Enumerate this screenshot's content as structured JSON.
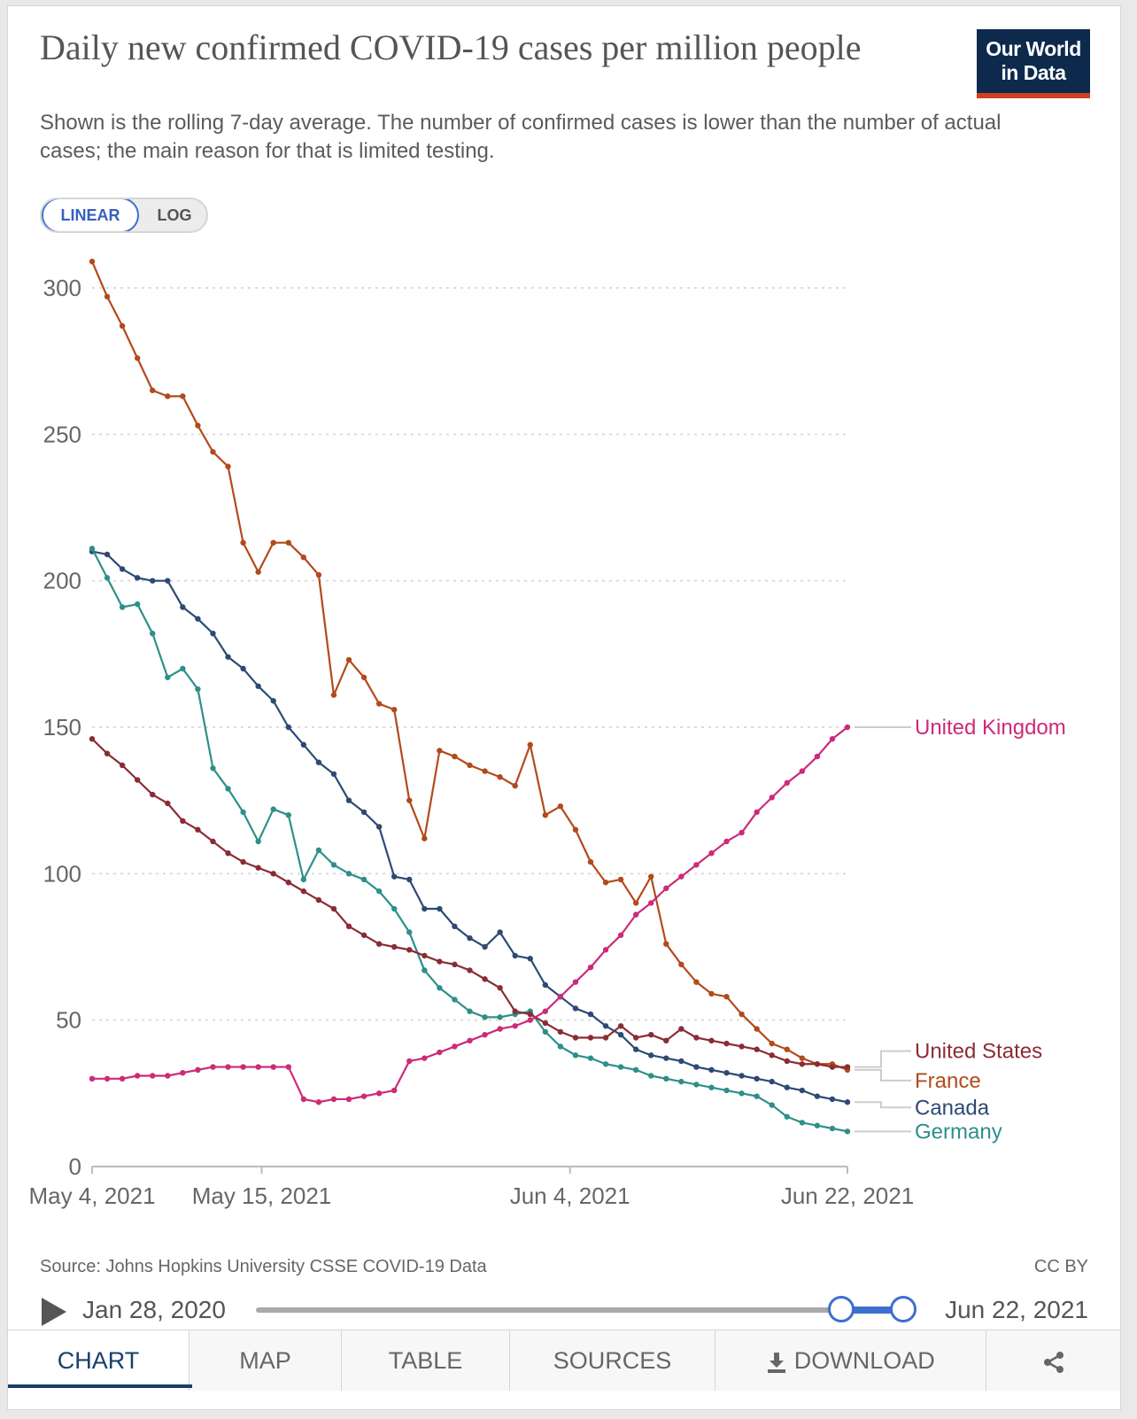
{
  "header": {
    "title": "Daily new confirmed COVID-19 cases per million people",
    "subtitle": "Shown is the rolling 7-day average. The number of confirmed cases is lower than the number of actual cases; the main reason for that is limited testing.",
    "logo_line1": "Our World",
    "logo_line2": "in Data"
  },
  "scale_toggle": {
    "linear_label": "LINEAR",
    "log_label": "LOG",
    "selected": "LINEAR"
  },
  "chart_data": {
    "type": "line",
    "title": "Daily new confirmed COVID-19 cases per million people",
    "ylim": [
      0,
      300
    ],
    "yticks": [
      0,
      50,
      100,
      150,
      200,
      250,
      300
    ],
    "x_start": "May 4, 2021",
    "x_end": "Jun 22, 2021",
    "x_tick_labels": [
      "May 4, 2021",
      "May 15, 2021",
      "Jun 4, 2021",
      "Jun 22, 2021"
    ],
    "grid": "horizontal dotted",
    "colors": {
      "United Kingdom": "#cc2a7a",
      "United States": "#8a2c35",
      "France": "#b24a1c",
      "Canada": "#2d4a74",
      "Germany": "#2e8f8a"
    },
    "series": [
      {
        "name": "France",
        "values": [
          309,
          297,
          287,
          276,
          265,
          263,
          263,
          253,
          244,
          239,
          213,
          203,
          213,
          213,
          208,
          202,
          161,
          173,
          167,
          158,
          156,
          125,
          112,
          142,
          140,
          137,
          135,
          133,
          130,
          144,
          120,
          123,
          115,
          104,
          97,
          98,
          90,
          99,
          76,
          69,
          63,
          59,
          58,
          52,
          47,
          42,
          40,
          37,
          35,
          35,
          33
        ]
      },
      {
        "name": "Canada",
        "values": [
          210,
          209,
          204,
          201,
          200,
          200,
          191,
          187,
          182,
          174,
          170,
          164,
          159,
          150,
          144,
          138,
          134,
          125,
          121,
          116,
          99,
          98,
          88,
          88,
          82,
          78,
          75,
          80,
          72,
          71,
          62,
          58,
          54,
          52,
          48,
          45,
          40,
          38,
          37,
          36,
          34,
          33,
          32,
          31,
          30,
          29,
          27,
          26,
          24,
          23,
          22
        ]
      },
      {
        "name": "Germany",
        "values": [
          211,
          201,
          191,
          192,
          182,
          167,
          170,
          163,
          136,
          129,
          121,
          111,
          122,
          120,
          98,
          108,
          103,
          100,
          98,
          94,
          88,
          80,
          67,
          61,
          57,
          53,
          51,
          51,
          52,
          53,
          46,
          41,
          38,
          37,
          35,
          34,
          33,
          31,
          30,
          29,
          28,
          27,
          26,
          25,
          24,
          21,
          17,
          15,
          14,
          13,
          12
        ]
      },
      {
        "name": "United States",
        "values": [
          146,
          141,
          137,
          132,
          127,
          124,
          118,
          115,
          111,
          107,
          104,
          102,
          100,
          97,
          94,
          91,
          88,
          82,
          79,
          76,
          75,
          74,
          72,
          70,
          69,
          67,
          64,
          61,
          53,
          52,
          49,
          46,
          44,
          44,
          44,
          48,
          44,
          45,
          43,
          47,
          44,
          43,
          42,
          41,
          40,
          38,
          36,
          35,
          35,
          34,
          34
        ]
      },
      {
        "name": "United Kingdom",
        "values": [
          30,
          30,
          30,
          31,
          31,
          31,
          32,
          33,
          34,
          34,
          34,
          34,
          34,
          34,
          23,
          22,
          23,
          23,
          24,
          25,
          26,
          36,
          37,
          39,
          41,
          43,
          45,
          47,
          48,
          50,
          53,
          58,
          63,
          68,
          74,
          79,
          86,
          90,
          95,
          99,
          103,
          107,
          111,
          114,
          121,
          126,
          131,
          135,
          140,
          146,
          150
        ]
      }
    ],
    "end_labels": [
      "United Kingdom",
      "United States",
      "France",
      "Canada",
      "Germany"
    ]
  },
  "footer": {
    "source": "Source: Johns Hopkins University CSSE COVID-19 Data",
    "license": "CC BY"
  },
  "timeline": {
    "start_label": "Jan 28, 2020",
    "end_label": "Jun 22, 2021"
  },
  "tabs": [
    {
      "label": "CHART"
    },
    {
      "label": "MAP"
    },
    {
      "label": "TABLE"
    },
    {
      "label": "SOURCES"
    },
    {
      "label": "DOWNLOAD"
    }
  ]
}
